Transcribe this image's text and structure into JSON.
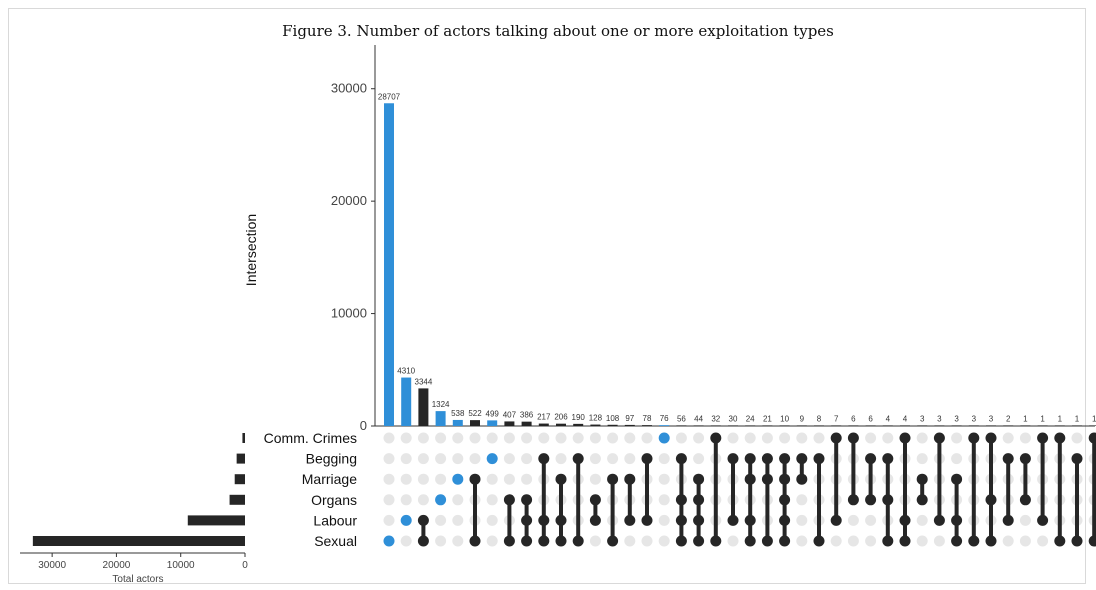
{
  "chart_data": {
    "type": "bar",
    "title": "Figure 3. Number of actors talking about one or more exploitation types",
    "ylabel": "Intersection",
    "ylim": [
      0,
      33000
    ],
    "yticks": [
      0,
      10000,
      20000,
      30000
    ],
    "sets": [
      "Comm. Crimes",
      "Begging",
      "Marriage",
      "Organs",
      "Labour",
      "Sexual"
    ],
    "set_totals": [
      400,
      1300,
      1600,
      2400,
      8900,
      33000
    ],
    "set_size_axis": {
      "label": "Total actors",
      "ticks": [
        30000,
        20000,
        10000,
        0
      ],
      "max": 35000
    },
    "intersections": [
      {
        "value": 28707,
        "label": "28707",
        "sets": [
          "Sexual"
        ],
        "highlight": true
      },
      {
        "value": 4310,
        "label": "4310",
        "sets": [
          "Labour"
        ],
        "highlight": true
      },
      {
        "value": 3344,
        "label": "3344",
        "sets": [
          "Labour",
          "Sexual"
        ],
        "highlight": false
      },
      {
        "value": 1324,
        "label": "1324",
        "sets": [
          "Organs"
        ],
        "highlight": true
      },
      {
        "value": 538,
        "label": "538",
        "sets": [
          "Marriage"
        ],
        "highlight": true
      },
      {
        "value": 522,
        "label": "522",
        "sets": [
          "Marriage",
          "Sexual"
        ],
        "highlight": false
      },
      {
        "value": 499,
        "label": "499",
        "sets": [
          "Begging"
        ],
        "highlight": true
      },
      {
        "value": 407,
        "label": "407",
        "sets": [
          "Organs",
          "Sexual"
        ],
        "highlight": false
      },
      {
        "value": 386,
        "label": "386",
        "sets": [
          "Organs",
          "Labour",
          "Sexual"
        ],
        "highlight": false
      },
      {
        "value": 217,
        "label": "217",
        "sets": [
          "Begging",
          "Labour",
          "Sexual"
        ],
        "highlight": false
      },
      {
        "value": 206,
        "label": "206",
        "sets": [
          "Marriage",
          "Labour",
          "Sexual"
        ],
        "highlight": false
      },
      {
        "value": 190,
        "label": "190",
        "sets": [
          "Begging",
          "Sexual"
        ],
        "highlight": false
      },
      {
        "value": 128,
        "label": "128",
        "sets": [
          "Organs",
          "Labour"
        ],
        "highlight": false
      },
      {
        "value": 108,
        "label": "108",
        "sets": [
          "Marriage",
          "Sexual"
        ],
        "highlight": false
      },
      {
        "value": 97,
        "label": "97",
        "sets": [
          "Marriage",
          "Labour"
        ],
        "highlight": false
      },
      {
        "value": 78,
        "label": "78",
        "sets": [
          "Begging",
          "Labour"
        ],
        "highlight": false
      },
      {
        "value": 76,
        "label": "76",
        "sets": [
          "Comm. Crimes"
        ],
        "highlight": true
      },
      {
        "value": 56,
        "label": "56",
        "sets": [
          "Begging",
          "Organs",
          "Labour",
          "Sexual"
        ],
        "highlight": false
      },
      {
        "value": 44,
        "label": "44",
        "sets": [
          "Marriage",
          "Organs",
          "Labour",
          "Sexual"
        ],
        "highlight": false
      },
      {
        "value": 32,
        "label": "32",
        "sets": [
          "Comm. Crimes",
          "Sexual"
        ],
        "highlight": false
      },
      {
        "value": 30,
        "label": "30",
        "sets": [
          "Begging",
          "Labour"
        ],
        "highlight": false
      },
      {
        "value": 24,
        "label": "24",
        "sets": [
          "Begging",
          "Marriage",
          "Labour",
          "Sexual"
        ],
        "highlight": false
      },
      {
        "value": 21,
        "label": "21",
        "sets": [
          "Begging",
          "Marriage",
          "Sexual"
        ],
        "highlight": false
      },
      {
        "value": 10,
        "label": "10",
        "sets": [
          "Begging",
          "Marriage",
          "Organs",
          "Labour",
          "Sexual"
        ],
        "highlight": false
      },
      {
        "value": 9,
        "label": "9",
        "sets": [
          "Begging",
          "Marriage"
        ],
        "highlight": false
      },
      {
        "value": 8,
        "label": "8",
        "sets": [
          "Begging",
          "Sexual"
        ],
        "highlight": false
      },
      {
        "value": 7,
        "label": "7",
        "sets": [
          "Comm. Crimes",
          "Labour"
        ],
        "highlight": false
      },
      {
        "value": 6,
        "label": "6",
        "sets": [
          "Comm. Crimes",
          "Organs"
        ],
        "highlight": false
      },
      {
        "value": 6,
        "label": "6",
        "sets": [
          "Begging",
          "Organs"
        ],
        "highlight": false
      },
      {
        "value": 4,
        "label": "4",
        "sets": [
          "Begging",
          "Organs",
          "Sexual"
        ],
        "highlight": false
      },
      {
        "value": 4,
        "label": "4",
        "sets": [
          "Comm. Crimes",
          "Labour",
          "Sexual"
        ],
        "highlight": false
      },
      {
        "value": 3,
        "label": "3",
        "sets": [
          "Marriage",
          "Organs"
        ],
        "highlight": false
      },
      {
        "value": 3,
        "label": "3",
        "sets": [
          "Comm. Crimes",
          "Labour"
        ],
        "highlight": false
      },
      {
        "value": 3,
        "label": "3",
        "sets": [
          "Marriage",
          "Labour",
          "Sexual"
        ],
        "highlight": false
      },
      {
        "value": 3,
        "label": "3",
        "sets": [
          "Comm. Crimes",
          "Sexual"
        ],
        "highlight": false
      },
      {
        "value": 3,
        "label": "3",
        "sets": [
          "Comm. Crimes",
          "Organs",
          "Sexual"
        ],
        "highlight": false
      },
      {
        "value": 2,
        "label": "2",
        "sets": [
          "Begging",
          "Labour"
        ],
        "highlight": false
      },
      {
        "value": 1,
        "label": "1",
        "sets": [
          "Begging",
          "Organs"
        ],
        "highlight": false
      },
      {
        "value": 1,
        "label": "1",
        "sets": [
          "Comm. Crimes",
          "Labour"
        ],
        "highlight": false
      },
      {
        "value": 1,
        "label": "1",
        "sets": [
          "Comm. Crimes",
          "Sexual"
        ],
        "highlight": false
      },
      {
        "value": 1,
        "label": "1",
        "sets": [
          "Begging",
          "Sexual"
        ],
        "highlight": false
      },
      {
        "value": 1,
        "label": "1",
        "sets": [
          "Comm. Crimes",
          "Sexual"
        ],
        "highlight": false
      }
    ],
    "colors": {
      "highlight": "#2f8fd8",
      "default": "#262626",
      "inactive_dot": "#e6e6e6"
    }
  }
}
